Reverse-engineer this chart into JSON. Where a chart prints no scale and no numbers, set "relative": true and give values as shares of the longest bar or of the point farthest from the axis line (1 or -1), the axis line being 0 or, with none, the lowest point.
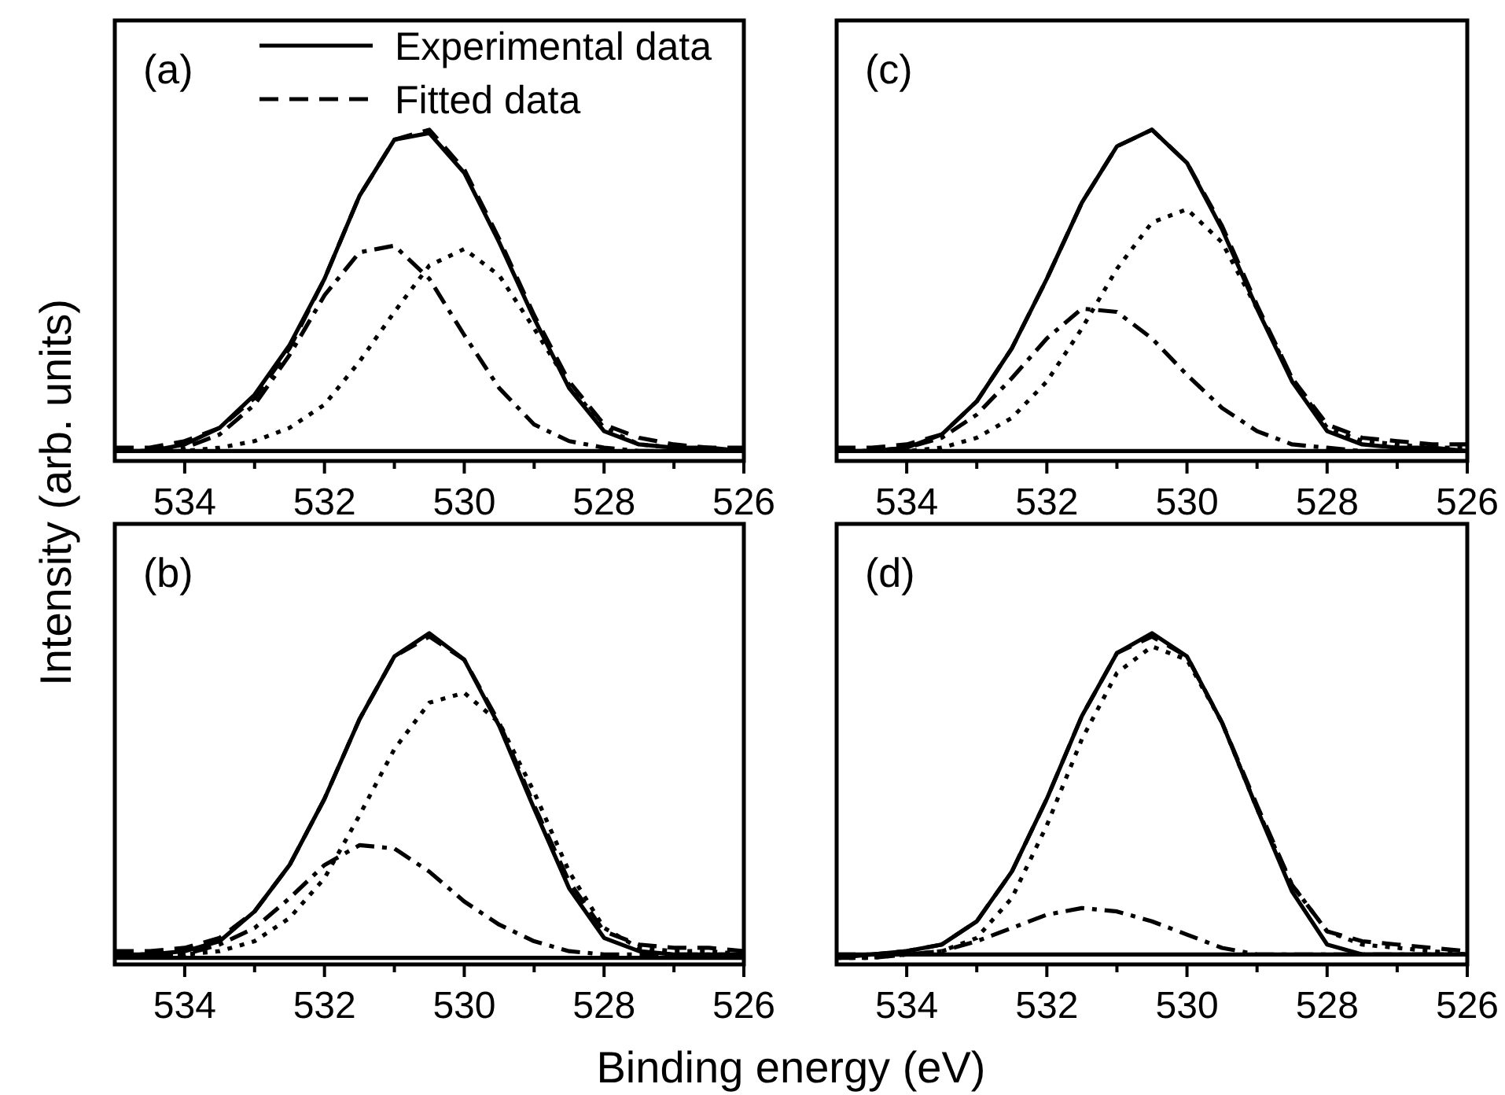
{
  "chart_data": [
    {
      "type": "line",
      "title": "(a)",
      "ylabel": "Intensity (arb. units)",
      "relative": true,
      "legend": "top",
      "tick_labels": "x",
      "xlim": [
        535,
        526
      ],
      "xticks": [
        534,
        {
          "value": 533,
          "label": null
        },
        532,
        {
          "value": 531,
          "label": null
        },
        530,
        {
          "value": 529,
          "label": null
        },
        528,
        {
          "value": 527,
          "label": null
        },
        526
      ],
      "x": [
        535,
        534.5,
        534,
        533.5,
        533,
        532.5,
        532,
        531.5,
        531,
        530.5,
        530,
        529.5,
        529,
        528.5,
        528,
        527.5,
        527,
        526.5,
        526
      ],
      "series": [
        {
          "name": "Experimental data",
          "color": "#000000",
          "line_style": "solid",
          "values": [
            0.03,
            0.03,
            0.05,
            0.1,
            0.2,
            0.35,
            0.55,
            0.8,
            0.97,
            0.99,
            0.87,
            0.66,
            0.43,
            0.22,
            0.09,
            0.05,
            0.04,
            0.04,
            0.03
          ]
        },
        {
          "name": "Fitted data",
          "color": "#000000",
          "line_style": "dashed",
          "values": [
            0.04,
            0.04,
            0.06,
            0.1,
            0.19,
            0.34,
            0.55,
            0.8,
            0.97,
            1.0,
            0.88,
            0.67,
            0.44,
            0.24,
            0.11,
            0.07,
            0.05,
            0.04,
            0.04
          ]
        },
        {
          "color": "#000000",
          "line_style": "dashdot",
          "values": [
            0.03,
            0.03,
            0.04,
            0.08,
            0.17,
            0.32,
            0.5,
            0.63,
            0.65,
            0.55,
            0.38,
            0.22,
            0.11,
            0.06,
            0.04,
            0.03,
            0.03,
            0.03,
            0.03
          ]
        },
        {
          "color": "#000000",
          "line_style": "dotted",
          "values": [
            0.03,
            0.03,
            0.03,
            0.04,
            0.06,
            0.1,
            0.17,
            0.3,
            0.45,
            0.59,
            0.64,
            0.56,
            0.4,
            0.23,
            0.1,
            0.05,
            0.04,
            0.03,
            0.03
          ]
        },
        {
          "color": "#000000",
          "line_style": "solid",
          "values": [
            0.03,
            0.03,
            0.03,
            0.03,
            0.03,
            0.03,
            0.03,
            0.03,
            0.03,
            0.03,
            0.03,
            0.03,
            0.03,
            0.03,
            0.03,
            0.03,
            0.03,
            0.03,
            0.03
          ]
        }
      ]
    },
    {
      "type": "line",
      "title": "(c)",
      "relative": true,
      "tick_labels": "x",
      "xlim": [
        535,
        526
      ],
      "xticks": [
        534,
        {
          "value": 533,
          "label": null
        },
        532,
        {
          "value": 531,
          "label": null
        },
        530,
        {
          "value": 529,
          "label": null
        },
        528,
        {
          "value": 527,
          "label": null
        },
        526
      ],
      "x": [
        535,
        534.5,
        534,
        533.5,
        533,
        532.5,
        532,
        531.5,
        531,
        530.5,
        530,
        529.5,
        529,
        528.5,
        528,
        527.5,
        527,
        526.5,
        526
      ],
      "series": [
        {
          "color": "#000000",
          "line_style": "solid",
          "values": [
            0.03,
            0.03,
            0.04,
            0.08,
            0.18,
            0.34,
            0.55,
            0.78,
            0.95,
            1.0,
            0.9,
            0.7,
            0.46,
            0.24,
            0.09,
            0.05,
            0.04,
            0.04,
            0.03
          ]
        },
        {
          "color": "#000000",
          "line_style": "dashed",
          "values": [
            0.04,
            0.04,
            0.05,
            0.08,
            0.18,
            0.34,
            0.55,
            0.78,
            0.95,
            1.0,
            0.9,
            0.71,
            0.47,
            0.25,
            0.11,
            0.07,
            0.06,
            0.05,
            0.05
          ]
        },
        {
          "color": "#000000",
          "line_style": "dashdot",
          "values": [
            0.03,
            0.03,
            0.04,
            0.07,
            0.14,
            0.25,
            0.37,
            0.46,
            0.45,
            0.37,
            0.26,
            0.16,
            0.09,
            0.05,
            0.04,
            0.03,
            0.03,
            0.03,
            0.03
          ]
        },
        {
          "color": "#000000",
          "line_style": "dotted",
          "values": [
            0.03,
            0.03,
            0.03,
            0.04,
            0.07,
            0.13,
            0.24,
            0.4,
            0.58,
            0.72,
            0.76,
            0.66,
            0.46,
            0.25,
            0.1,
            0.06,
            0.05,
            0.04,
            0.04
          ]
        },
        {
          "color": "#000000",
          "line_style": "solid",
          "values": [
            0.03,
            0.03,
            0.03,
            0.03,
            0.03,
            0.03,
            0.03,
            0.03,
            0.03,
            0.03,
            0.03,
            0.03,
            0.03,
            0.03,
            0.03,
            0.03,
            0.03,
            0.03,
            0.03
          ]
        }
      ]
    },
    {
      "type": "line",
      "title": "(b)",
      "xlabel": "Binding energy (eV)",
      "relative": true,
      "tick_labels": "x",
      "xlim": [
        535,
        526
      ],
      "xticks": [
        534,
        {
          "value": 533,
          "label": null
        },
        532,
        {
          "value": 531,
          "label": null
        },
        530,
        {
          "value": 529,
          "label": null
        },
        528,
        {
          "value": 527,
          "label": null
        },
        526
      ],
      "x": [
        535,
        534.5,
        534,
        533.5,
        533,
        532.5,
        532,
        531.5,
        531,
        530.5,
        530,
        529.5,
        529,
        528.5,
        528,
        527.5,
        527,
        526.5,
        526
      ],
      "series": [
        {
          "color": "#000000",
          "line_style": "solid",
          "values": [
            0.03,
            0.03,
            0.04,
            0.07,
            0.16,
            0.3,
            0.5,
            0.74,
            0.93,
            1.0,
            0.92,
            0.72,
            0.47,
            0.23,
            0.08,
            0.04,
            0.03,
            0.03,
            0.03
          ]
        },
        {
          "color": "#000000",
          "line_style": "dashed",
          "values": [
            0.04,
            0.04,
            0.05,
            0.08,
            0.16,
            0.3,
            0.5,
            0.74,
            0.93,
            0.99,
            0.92,
            0.73,
            0.48,
            0.25,
            0.1,
            0.06,
            0.05,
            0.05,
            0.04
          ]
        },
        {
          "color": "#000000",
          "line_style": "dashdot",
          "values": [
            0.03,
            0.03,
            0.03,
            0.06,
            0.11,
            0.2,
            0.3,
            0.36,
            0.35,
            0.28,
            0.19,
            0.12,
            0.07,
            0.04,
            0.03,
            0.03,
            0.03,
            0.03,
            0.03
          ]
        },
        {
          "color": "#000000",
          "line_style": "dotted",
          "values": [
            0.03,
            0.03,
            0.03,
            0.04,
            0.07,
            0.14,
            0.26,
            0.45,
            0.65,
            0.79,
            0.82,
            0.73,
            0.52,
            0.28,
            0.11,
            0.05,
            0.04,
            0.04,
            0.03
          ]
        },
        {
          "color": "#000000",
          "line_style": "solid",
          "values": [
            0.02,
            0.02,
            0.02,
            0.02,
            0.02,
            0.02,
            0.02,
            0.02,
            0.02,
            0.02,
            0.02,
            0.02,
            0.02,
            0.02,
            0.02,
            0.02,
            0.02,
            0.02,
            0.02
          ]
        }
      ]
    },
    {
      "type": "line",
      "title": "(d)",
      "relative": true,
      "tick_labels": "x",
      "xlim": [
        535,
        526
      ],
      "xticks": [
        534,
        {
          "value": 533,
          "label": null
        },
        532,
        {
          "value": 531,
          "label": null
        },
        530,
        {
          "value": 529,
          "label": null
        },
        528,
        {
          "value": 527,
          "label": null
        },
        526
      ],
      "x": [
        535,
        534.5,
        534,
        533.5,
        533,
        532.5,
        532,
        531.5,
        531,
        530.5,
        530,
        529.5,
        529,
        528.5,
        528,
        527.5,
        527,
        526.5,
        526
      ],
      "series": [
        {
          "color": "#000000",
          "line_style": "solid",
          "values": [
            0.02,
            0.03,
            0.04,
            0.06,
            0.13,
            0.28,
            0.5,
            0.75,
            0.94,
            1.0,
            0.93,
            0.73,
            0.47,
            0.22,
            0.06,
            0.03,
            0.03,
            0.03,
            0.03
          ]
        },
        {
          "color": "#000000",
          "line_style": "dashed",
          "values": [
            0.03,
            0.03,
            0.04,
            0.06,
            0.13,
            0.28,
            0.5,
            0.75,
            0.94,
            0.99,
            0.93,
            0.73,
            0.48,
            0.24,
            0.1,
            0.07,
            0.06,
            0.05,
            0.04
          ]
        },
        {
          "color": "#000000",
          "line_style": "dashdot",
          "values": [
            0.02,
            0.02,
            0.03,
            0.04,
            0.07,
            0.11,
            0.15,
            0.17,
            0.16,
            0.13,
            0.09,
            0.05,
            0.03,
            0.03,
            0.03,
            0.03,
            0.03,
            0.03,
            0.03
          ]
        },
        {
          "color": "#000000",
          "line_style": "dotted",
          "values": [
            0.02,
            0.02,
            0.03,
            0.04,
            0.08,
            0.2,
            0.42,
            0.68,
            0.88,
            0.96,
            0.92,
            0.73,
            0.47,
            0.24,
            0.1,
            0.06,
            0.05,
            0.04,
            0.03
          ]
        },
        {
          "color": "#000000",
          "line_style": "solid",
          "values": [
            0.03,
            0.03,
            0.03,
            0.03,
            0.03,
            0.03,
            0.03,
            0.03,
            0.03,
            0.03,
            0.03,
            0.03,
            0.03,
            0.03,
            0.03,
            0.03,
            0.03,
            0.03,
            0.03
          ]
        }
      ]
    }
  ]
}
